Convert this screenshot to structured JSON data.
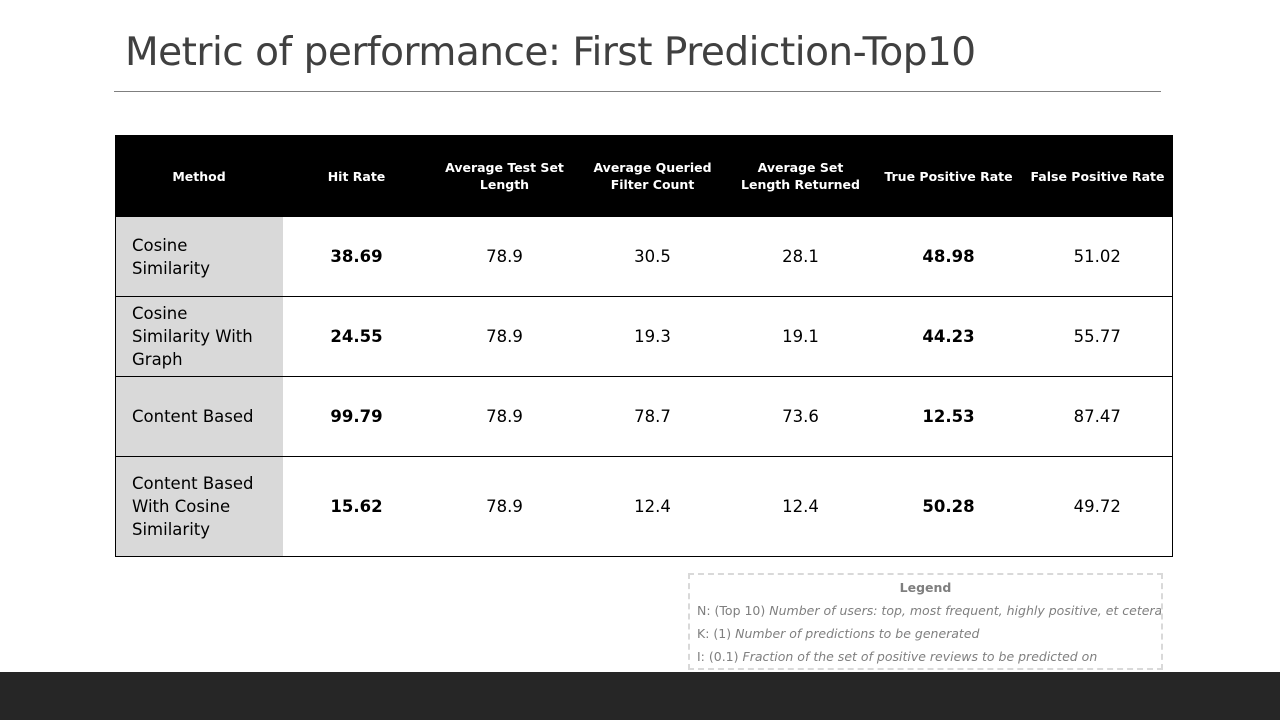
{
  "slide": {
    "title": "Metric of performance: First Prediction-Top10"
  },
  "table": {
    "headers": [
      "Method",
      "Hit Rate",
      "Average Test Set Length",
      "Average Queried Filter Count",
      "Average Set Length Returned",
      "True Positive Rate",
      "False Positive Rate"
    ],
    "rows": [
      [
        "Cosine Similarity",
        "38.69",
        "78.9",
        "30.5",
        "28.1",
        "48.98",
        "51.02"
      ],
      [
        "Cosine Similarity With Graph",
        "24.55",
        "78.9",
        "19.3",
        "19.1",
        "44.23",
        "55.77"
      ],
      [
        "Content Based",
        "99.79",
        "78.9",
        "78.7",
        "73.6",
        "12.53",
        "87.47"
      ],
      [
        "Content Based With Cosine Similarity",
        "15.62",
        "78.9",
        "12.4",
        "12.4",
        "50.28",
        "49.72"
      ]
    ]
  },
  "legend": {
    "title": "Legend",
    "items": [
      {
        "key": "N: (Top 10)",
        "desc": "Number of users: top, most frequent, highly positive, et cetera"
      },
      {
        "key": "K: (1)",
        "desc": "Number of predictions to be generated"
      },
      {
        "key": "I: (0.1)",
        "desc": "Fraction of the set of positive reviews to be predicted on"
      }
    ]
  },
  "colors": {
    "header_bg": "#000000",
    "method_cell_bg": "#d9d9d9",
    "title_text": "#404040",
    "legend_text": "#7f7f7f",
    "bottom_bar": "#262626"
  }
}
